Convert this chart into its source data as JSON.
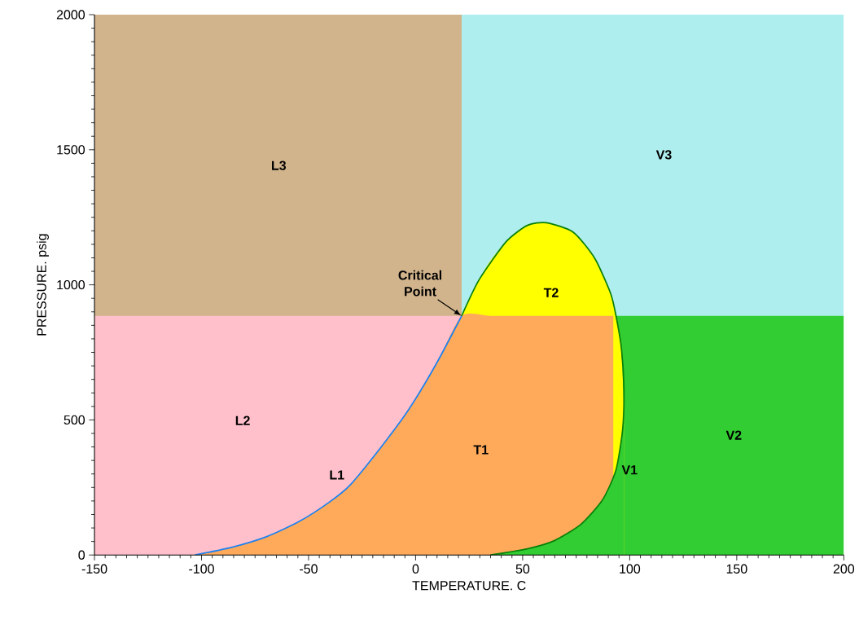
{
  "chart_data": {
    "type": "area",
    "xlabel": "TEMPERATURE. C",
    "ylabel": "PRESSURE. psig",
    "xlim": [
      -150,
      200
    ],
    "ylim": [
      0,
      2000
    ],
    "xticks": [
      -150,
      -100,
      -50,
      0,
      50,
      100,
      150,
      200
    ],
    "yticks": [
      0,
      500,
      1000,
      1500,
      2000
    ],
    "series": [
      {
        "name": "L3",
        "color": "#d2b48c",
        "x": [
          -150,
          21.5
        ],
        "values": [
          2000,
          2000
        ]
      },
      {
        "name": "V3",
        "color": "#afeeee",
        "x": [
          21.5,
          200
        ],
        "values": [
          2000,
          2000
        ]
      },
      {
        "name": "L2",
        "color": "#ffc0cb",
        "x": [
          -150,
          21.5
        ],
        "values": [
          885,
          885
        ]
      },
      {
        "name": "V2",
        "color": "#32cd32",
        "x": [
          21.5,
          200
        ],
        "values": [
          885,
          885
        ]
      },
      {
        "name": "T2",
        "color": "#ffff00",
        "x": [
          -103,
          -86,
          -69.5,
          -54.4,
          -40.6,
          -30.6,
          -15.6,
          -3,
          9.6,
          21.5,
          29.6,
          35,
          42.2,
          52.2,
          61,
          73.6,
          83.6,
          91.1,
          93.6,
          96.1,
          97.3
        ],
        "values": [
          0,
          28,
          68,
          124,
          194,
          259,
          405,
          541,
          707,
          885,
          1018,
          1090,
          1159,
          1220,
          1230,
          1195,
          1099,
          968,
          885,
          767,
          550
        ]
      },
      {
        "name": "T1",
        "color": "#ffaa5a",
        "x": [
          -103,
          -86,
          -69.5,
          -54.4,
          -40.6,
          -30.6,
          -15.6,
          -3,
          9.6,
          21.5,
          35,
          52.2,
          73.6,
          92.4
        ],
        "values": [
          0,
          28,
          68,
          124,
          194,
          259,
          405,
          541,
          707,
          885,
          885,
          885,
          885,
          885
        ]
      },
      {
        "color": "#32cd32",
        "x": [
          35,
          42.2,
          52.2,
          64.8,
          77.3,
          87.3,
          93.6,
          96.7,
          97.3
        ],
        "values": [
          0,
          10,
          23,
          53,
          114,
          204,
          315,
          465,
          550
        ]
      },
      {
        "name": "L1",
        "type": "line",
        "color": "#1e82f0",
        "x": [
          -103,
          -86,
          -69.5,
          -54.4,
          -40.6,
          -30.6,
          -15.6,
          -3,
          9.6,
          21.5
        ],
        "values": [
          0,
          28,
          68,
          124,
          194,
          259,
          405,
          541,
          707,
          885
        ]
      },
      {
        "name": "V1",
        "type": "line",
        "color": "#0a800a",
        "x": [
          21.5,
          29.6,
          42.2,
          52.2,
          61,
          73.6,
          83.6,
          91.1,
          93.6,
          96.1,
          97.3,
          96.7,
          93.6,
          87.3,
          77.3,
          64.8,
          52.2,
          35
        ],
        "values": [
          885,
          1018,
          1159,
          1220,
          1230,
          1195,
          1099,
          968,
          885,
          767,
          616,
          465,
          315,
          204,
          114,
          53,
          23,
          0
        ]
      }
    ],
    "annotations": [
      {
        "text": "Critical Point",
        "x": 21.5,
        "y": 885
      }
    ]
  }
}
